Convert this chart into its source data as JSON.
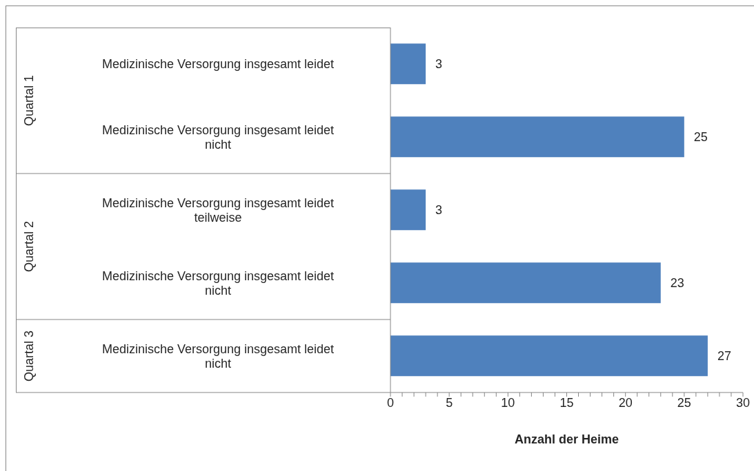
{
  "chart_data": {
    "type": "bar",
    "orientation": "horizontal",
    "xlabel": "Anzahl der Heime",
    "categories": [
      "Medizinische Versorgung insgesamt leidet",
      "Medizinische Versorgung insgesamt leidet nicht",
      "Medizinische Versorgung insgesamt leidet teilweise",
      "Medizinische Versorgung insgesamt leidet nicht",
      "Medizinische Versorgung insgesamt leidet nicht"
    ],
    "values": [
      3,
      25,
      3,
      23,
      27
    ],
    "color": "#4f81bd",
    "data_labels": true,
    "xlim": [
      0,
      30
    ],
    "xticks": [
      0,
      {
        "value": 1,
        "label": null
      },
      {
        "value": 2,
        "label": null
      },
      {
        "value": 3,
        "label": null
      },
      {
        "value": 4,
        "label": null
      },
      5,
      {
        "value": 6,
        "label": null
      },
      {
        "value": 7,
        "label": null
      },
      {
        "value": 8,
        "label": null
      },
      {
        "value": 9,
        "label": null
      },
      10,
      {
        "value": 11,
        "label": null
      },
      {
        "value": 12,
        "label": null
      },
      {
        "value": 13,
        "label": null
      },
      {
        "value": 14,
        "label": null
      },
      15,
      {
        "value": 16,
        "label": null
      },
      {
        "value": 17,
        "label": null
      },
      {
        "value": 18,
        "label": null
      },
      {
        "value": 19,
        "label": null
      },
      20,
      {
        "value": 21,
        "label": null
      },
      {
        "value": 22,
        "label": null
      },
      {
        "value": 23,
        "label": null
      },
      {
        "value": 24,
        "label": null
      },
      25,
      {
        "value": 26,
        "label": null
      },
      {
        "value": 27,
        "label": null
      },
      {
        "value": 28,
        "label": null
      },
      {
        "value": 29,
        "label": null
      },
      30
    ],
    "annotations": [
      "Quartal 1",
      "Quartal 2",
      "Quartal 3"
    ],
    "grid": false,
    "legend": false
  }
}
